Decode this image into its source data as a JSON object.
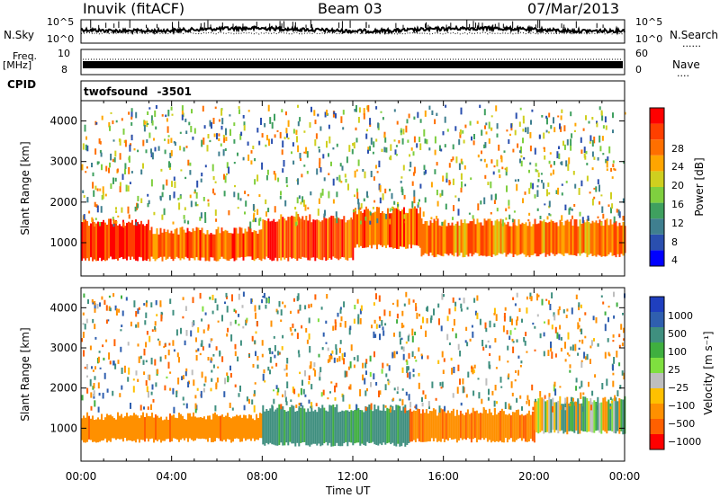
{
  "header": {
    "station": "Inuvik (fitACF)",
    "beam": "Beam 03",
    "date": "07/Mar/2013"
  },
  "strip_nsky": {
    "left_label": "N.Sky",
    "right_label": "N.Search",
    "left_ticks": [
      "10^5",
      "10^0"
    ],
    "right_ticks": [
      "10^5",
      "10^0"
    ],
    "right_legend": "......"
  },
  "strip_freq": {
    "left_label_top": "Freq.",
    "left_label_bottom": "[MHz]",
    "right_label": "Nave",
    "left_ticks": [
      "10",
      "8"
    ],
    "right_ticks": [
      "60",
      "0"
    ],
    "right_legend": "...."
  },
  "cpid": {
    "label": "CPID",
    "value": "twofsound",
    "id": "-3501"
  },
  "xaxis": {
    "label": "Time UT",
    "ticks": [
      "00:00",
      "04:00",
      "08:00",
      "12:00",
      "16:00",
      "20:00",
      "00:00"
    ]
  },
  "colors": {
    "power_scale": [
      "#0000ff",
      "#2a4faf",
      "#3f7f8f",
      "#3fa05f",
      "#7fcf3f",
      "#cfcf1f",
      "#ffa500",
      "#ff6f00",
      "#ff3f00",
      "#ff0000"
    ],
    "velocity_scale": [
      "#1f3fbf",
      "#2f5faf",
      "#3f8f7f",
      "#3faf3f",
      "#7fdf3f",
      "#bebebe",
      "#ffc000",
      "#ff9000",
      "#ff6000",
      "#ff0000"
    ]
  },
  "chart_data": [
    {
      "type": "heatmap",
      "name": "power",
      "ylabel": "Slant Range [km]",
      "xlabel": "Time UT",
      "xlim": [
        0,
        24
      ],
      "ylim": [
        180,
        4500
      ],
      "yticks": [
        1000,
        2000,
        3000,
        4000
      ],
      "colorbar": {
        "label": "Power [dB]",
        "ticks": [
          4,
          8,
          12,
          16,
          20,
          24,
          28
        ],
        "range": [
          0,
          30
        ]
      },
      "summary_bands": [
        {
          "t_start": 0,
          "t_end": 3,
          "range_km": [
            600,
            1500
          ],
          "value": 26
        },
        {
          "t_start": 3,
          "t_end": 8,
          "range_km": [
            600,
            1300
          ],
          "value": 24
        },
        {
          "t_start": 8,
          "t_end": 12,
          "range_km": [
            600,
            1600
          ],
          "value": 24
        },
        {
          "t_start": 12,
          "t_end": 15,
          "range_km": [
            900,
            1800
          ],
          "value": 24
        },
        {
          "t_start": 15,
          "t_end": 24,
          "range_km": [
            700,
            1500
          ],
          "value": 22
        }
      ]
    },
    {
      "type": "heatmap",
      "name": "velocity",
      "ylabel": "Slant Range [km]",
      "xlabel": "Time UT",
      "xlim": [
        0,
        24
      ],
      "ylim": [
        180,
        4500
      ],
      "yticks": [
        1000,
        2000,
        3000,
        4000
      ],
      "colorbar": {
        "label": "Velocity [m s⁻¹]",
        "ticks": [
          "1000",
          "500",
          "100",
          "25",
          "−25",
          "−100",
          "−500",
          "−1000"
        ]
      },
      "summary_bands": [
        {
          "t_start": 0,
          "t_end": 8,
          "range_km": [
            700,
            1300
          ],
          "value": -200
        },
        {
          "t_start": 8,
          "t_end": 14.5,
          "range_km": [
            600,
            1500
          ],
          "value": 150
        },
        {
          "t_start": 14.5,
          "t_end": 20,
          "range_km": [
            700,
            1400
          ],
          "value": -250
        },
        {
          "t_start": 20,
          "t_end": 24,
          "range_km": [
            900,
            1700
          ],
          "value": 0
        }
      ]
    }
  ]
}
